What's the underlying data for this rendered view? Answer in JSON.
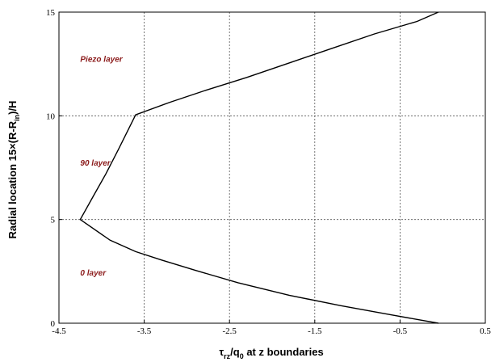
{
  "chart_data": {
    "type": "line",
    "title": "",
    "xlabel": {
      "base": "τ",
      "sub1": "rz",
      "mid": "/q",
      "sub2": "0",
      "tail": " at z boundaries"
    },
    "ylabel": {
      "pre": "Radial location  15×(R-R",
      "sub": "in",
      "post": ")/H"
    },
    "xlim": [
      -4.5,
      0.5
    ],
    "ylim": [
      0,
      15
    ],
    "x_ticks": [
      -4.5,
      -3.5,
      -2.5,
      -1.5,
      -0.5,
      0.5
    ],
    "x_tick_labels": [
      "-4.5",
      "-3.5",
      "-2.5",
      "-1.5",
      "-0.5",
      "0.5"
    ],
    "y_ticks": [
      0,
      5,
      10,
      15
    ],
    "y_tick_labels": [
      "0",
      "5",
      "10",
      "15"
    ],
    "grid": true,
    "series": [
      {
        "values": [
          [
            -0.05,
            0.0
          ],
          [
            -0.6,
            0.4
          ],
          [
            -1.2,
            0.85
          ],
          [
            -1.8,
            1.35
          ],
          [
            -2.4,
            1.95
          ],
          [
            -2.9,
            2.55
          ],
          [
            -3.3,
            3.05
          ],
          [
            -3.6,
            3.45
          ],
          [
            -3.9,
            4.0
          ],
          [
            -4.25,
            5.0
          ],
          [
            -4.1,
            6.1
          ],
          [
            -3.95,
            7.2
          ],
          [
            -3.8,
            8.4
          ],
          [
            -3.6,
            10.05
          ],
          [
            -3.2,
            10.65
          ],
          [
            -2.8,
            11.2
          ],
          [
            -2.3,
            11.85
          ],
          [
            -1.8,
            12.55
          ],
          [
            -1.3,
            13.25
          ],
          [
            -0.8,
            13.95
          ],
          [
            -0.3,
            14.55
          ],
          [
            -0.05,
            15.0
          ]
        ]
      }
    ],
    "annotations": [
      {
        "text": "Piezo layer",
        "x": -4.25,
        "y": 12.6
      },
      {
        "text": "90 layer",
        "x": -4.25,
        "y": 7.6
      },
      {
        "text": "0 layer",
        "x": -4.25,
        "y": 2.3
      }
    ]
  }
}
